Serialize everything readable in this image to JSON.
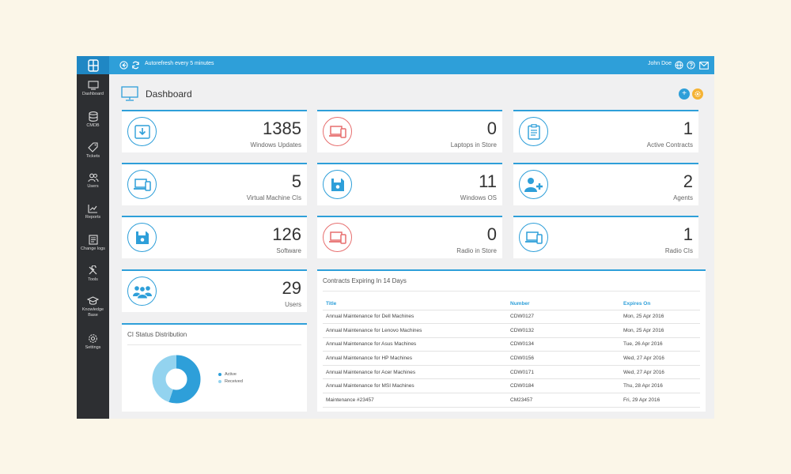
{
  "header": {
    "autorefresh": "Autorefresh every 5 minutes",
    "user_name": "John Doe"
  },
  "sidebar": {
    "items": [
      {
        "label": "Dashboard",
        "icon": "monitor-icon"
      },
      {
        "label": "CMDB",
        "icon": "database-icon"
      },
      {
        "label": "Tickets",
        "icon": "tag-icon"
      },
      {
        "label": "Users",
        "icon": "users-icon"
      },
      {
        "label": "Reports",
        "icon": "chart-icon"
      },
      {
        "label": "Change logs",
        "icon": "log-icon"
      },
      {
        "label": "Tools",
        "icon": "tools-icon"
      },
      {
        "label": "Knowledge",
        "label2": "Base",
        "icon": "graduation-cap-icon"
      },
      {
        "label": "Settings",
        "icon": "gear-icon"
      }
    ]
  },
  "page": {
    "title": "Dashboard"
  },
  "stats": [
    {
      "value": "1385",
      "label": "Windows Updates",
      "icon": "download-icon",
      "accent": "blue"
    },
    {
      "value": "0",
      "label": "Laptops in Store",
      "icon": "devices-icon",
      "accent": "red"
    },
    {
      "value": "1",
      "label": "Active Contracts",
      "icon": "clipboard-icon",
      "accent": "blue"
    },
    {
      "value": "5",
      "label": "Virtual Machine CIs",
      "icon": "devices-icon",
      "accent": "blue"
    },
    {
      "value": "11",
      "label": "Windows OS",
      "icon": "floppy-icon",
      "accent": "blue"
    },
    {
      "value": "2",
      "label": "Agents",
      "icon": "add-user-icon",
      "accent": "blue"
    },
    {
      "value": "126",
      "label": "Software",
      "icon": "floppy-icon",
      "accent": "blue"
    },
    {
      "value": "0",
      "label": "Radio in Store",
      "icon": "devices-icon",
      "accent": "red"
    },
    {
      "value": "1",
      "label": "Radio CIs",
      "icon": "devices-icon",
      "accent": "blue"
    },
    {
      "value": "29",
      "label": "Users",
      "icon": "users-group-icon",
      "accent": "blue"
    }
  ],
  "ci_status": {
    "title": "CI Status Distribution",
    "legend": [
      {
        "label": "Active",
        "color": "#2e9fd9"
      },
      {
        "label": "Received",
        "color": "#93d3ef"
      }
    ],
    "chart_data": {
      "type": "pie",
      "categories": [
        "Active",
        "Received"
      ],
      "values": [
        55,
        45
      ]
    }
  },
  "contracts": {
    "title": "Contracts Expiring In 14 Days",
    "columns": [
      "Title",
      "Number",
      "Expires On"
    ],
    "rows": [
      [
        "Annual Maintenance for Dell Machines",
        "CDW0127",
        "Mon, 25 Apr 2016"
      ],
      [
        "Annual Maintenance for Lenovo Machines",
        "CDW0132",
        "Mon, 25 Apr 2016"
      ],
      [
        "Annual Maintenance for Asus Machines",
        "CDW0134",
        "Tue, 26 Apr 2016"
      ],
      [
        "Annual Maintenance for HP Machines",
        "CDW0156",
        "Wed, 27 Apr 2016"
      ],
      [
        "Annual Maintenance for Acer Machines",
        "CDW0171",
        "Wed, 27 Apr 2016"
      ],
      [
        "Annual Maintenance for MSI Machines",
        "CDW0184",
        "Thu, 28 Apr 2016"
      ],
      [
        "Maintenance #23457",
        "CM23457",
        "Fri, 29 Apr 2016"
      ]
    ]
  },
  "colors": {
    "accent": "#2e9fd9",
    "danger": "#e76f6f",
    "sidebar": "#2d2f32",
    "warning": "#f5b335"
  }
}
